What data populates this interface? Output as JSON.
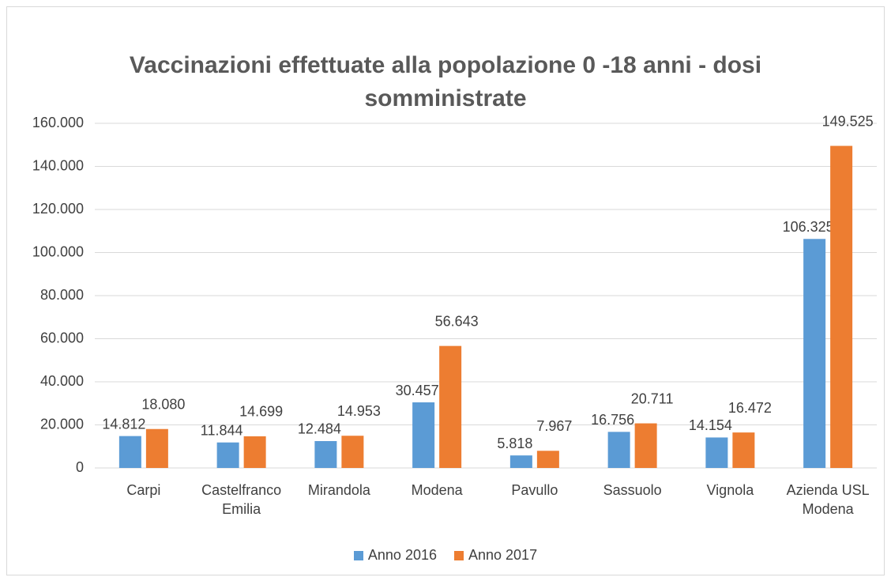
{
  "chart_data": {
    "type": "bar",
    "title": "Vaccinazioni effettuate alla popolazione 0 -18 anni - dosi somministrate",
    "categories": [
      "Carpi",
      "Castelfranco Emilia",
      "Mirandola",
      "Modena",
      "Pavullo",
      "Sassuolo",
      "Vignola",
      "Azienda USL Modena"
    ],
    "series": [
      {
        "name": "Anno 2016",
        "color": "#5b9bd5",
        "values": [
          14812,
          11844,
          12484,
          30457,
          5818,
          16756,
          14154,
          106325
        ],
        "value_labels": [
          "14.812",
          "11.844",
          "12.484",
          "30.457",
          "5.818",
          "16.756",
          "14.154",
          "106.325"
        ]
      },
      {
        "name": "Anno 2017",
        "color": "#ed7d31",
        "values": [
          18080,
          14699,
          14953,
          56643,
          7967,
          20711,
          16472,
          149525
        ],
        "value_labels": [
          "18.080",
          "14.699",
          "14.953",
          "56.643",
          "7.967",
          "20.711",
          "16.472",
          "149.525"
        ]
      }
    ],
    "ylim": [
      0,
      160000
    ],
    "yticks": [
      0,
      {
        "value": 20000,
        "label": "20.000"
      },
      {
        "value": 40000,
        "label": "40.000"
      },
      {
        "value": 60000,
        "label": "60.000"
      },
      {
        "value": 80000,
        "label": "80.000"
      },
      {
        "value": 100000,
        "label": "100.000"
      },
      {
        "value": 120000,
        "label": "120.000"
      },
      {
        "value": 140000,
        "label": "140.000"
      },
      {
        "value": 160000,
        "label": "160.000"
      }
    ],
    "grid": true,
    "legend": "bottom"
  }
}
